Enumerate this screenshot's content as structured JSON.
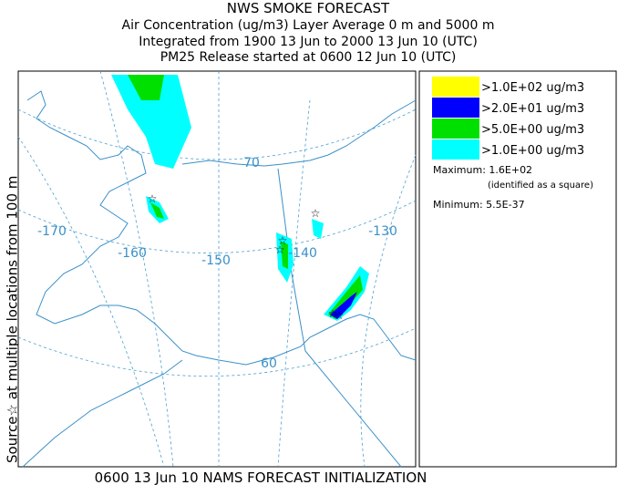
{
  "header": {
    "title": "NWS SMOKE FORECAST",
    "lines": [
      "Air Concentration (ug/m3) Layer Average    0 m and  5000 m",
      "Integrated from 1900 13 Jun to 2000 13 Jun 10 (UTC)",
      "PM25 Release started at 0600 12 Jun 10 (UTC)"
    ]
  },
  "side_label": "Source☆ at multiple locations from  100 m",
  "map": {
    "labels": [
      "-170",
      "-160",
      "-150",
      "-140",
      "-130",
      "70",
      "60"
    ]
  },
  "legend": {
    "items": [
      {
        "label": ">1.0E+02 ug/m3",
        "color": "#ffff00"
      },
      {
        "label": ">2.0E+01 ug/m3",
        "color": "#0000ff"
      },
      {
        "label": ">5.0E+00 ug/m3",
        "color": "#00e000"
      },
      {
        "label": ">1.0E+00 ug/m3",
        "color": "#00ffff"
      }
    ],
    "maximum": "Maximum: 1.6E+02",
    "maximum_note": "(identified as a square)",
    "minimum": "Minimum: 5.5E-37"
  },
  "footer": "0600 13 Jun 10 NAMS FORECAST INITIALIZATION"
}
